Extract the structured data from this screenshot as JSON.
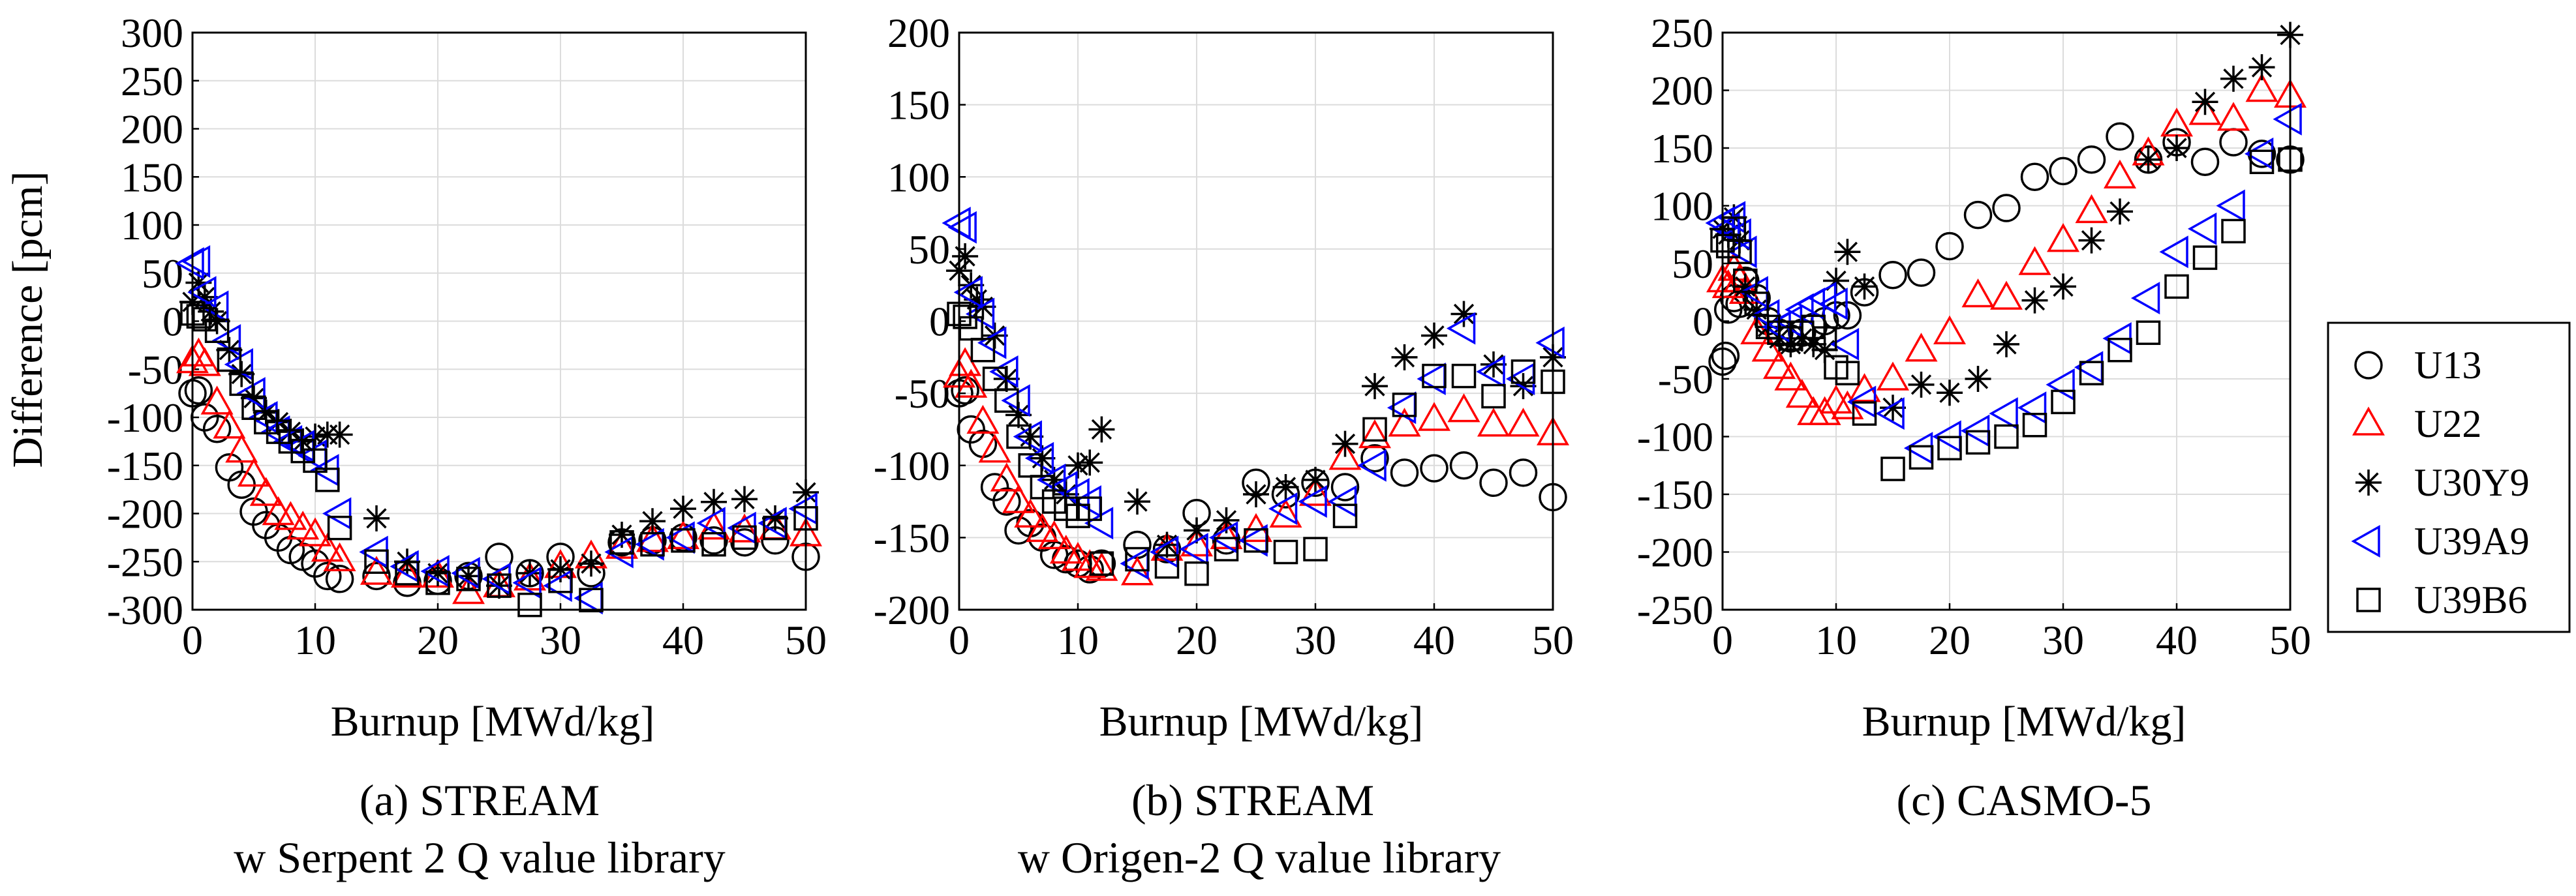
{
  "colors": {
    "U13": "#000000",
    "U22": "#ff0000",
    "U30Y9": "#000000",
    "U39A9": "#0000ff",
    "U39B6": "#000000"
  },
  "legend": {
    "placement": "right",
    "entries": [
      {
        "name": "U13",
        "marker": "circle"
      },
      {
        "name": "U22",
        "marker": "triangle-up"
      },
      {
        "name": "U30Y9",
        "marker": "asterisk"
      },
      {
        "name": "U39A9",
        "marker": "triangle-left"
      },
      {
        "name": "U39B6",
        "marker": "square"
      }
    ]
  },
  "chart_data": [
    {
      "type": "scatter",
      "caption_line1": "(a) STREAM",
      "caption_line2": "w Serpent 2 Q value library",
      "xlabel": "Burnup [MWd/kg]",
      "ylabel": "Difference [pcm]",
      "xlim": [
        0,
        50
      ],
      "ylim": [
        -300,
        300
      ],
      "xticks": [
        0,
        10,
        20,
        30,
        40,
        50
      ],
      "yticks": [
        -300,
        -250,
        -200,
        -150,
        -100,
        -50,
        0,
        50,
        100,
        150,
        200,
        250,
        300
      ],
      "grid": true,
      "series": [
        {
          "name": "U13",
          "x": [
            0,
            0.5,
            1,
            2,
            3,
            4,
            5,
            6,
            7,
            8,
            9,
            10,
            11,
            12,
            15,
            17.5,
            20,
            22.5,
            25,
            27.5,
            30,
            32.5,
            35,
            37.5,
            40,
            42.5,
            45,
            47.5,
            50
          ],
          "y": [
            -75,
            -72,
            -100,
            -112,
            -152,
            -170,
            -198,
            -212,
            -225,
            -238,
            -245,
            -252,
            -265,
            -268,
            -265,
            -272,
            -270,
            -265,
            -245,
            -262,
            -245,
            -262,
            -230,
            -228,
            -225,
            -228,
            -230,
            -228,
            -245
          ]
        },
        {
          "name": "U22",
          "x": [
            0,
            0.5,
            1,
            2,
            3,
            4,
            5,
            6,
            7,
            8,
            9,
            10,
            11,
            12,
            15,
            17.5,
            20,
            22.5,
            25,
            27.5,
            30,
            32.5,
            35,
            37.5,
            40,
            42.5,
            45,
            47.5,
            50
          ],
          "y": [
            -42,
            -35,
            -45,
            -85,
            -110,
            -135,
            -160,
            -180,
            -200,
            -205,
            -215,
            -222,
            -238,
            -248,
            -262,
            -265,
            -265,
            -282,
            -275,
            -268,
            -255,
            -245,
            -235,
            -228,
            -225,
            -215,
            -218,
            -215,
            -222
          ]
        },
        {
          "name": "U30Y9",
          "x": [
            0,
            0.5,
            1,
            1.5,
            2,
            3,
            4,
            5,
            6,
            7,
            8,
            9,
            10,
            11,
            12,
            15,
            17.5,
            20,
            22.5,
            25,
            27.5,
            30,
            32.5,
            35,
            37.5,
            40,
            42.5,
            45,
            47.5,
            50
          ],
          "y": [
            20,
            40,
            25,
            10,
            0,
            -30,
            -55,
            -80,
            -95,
            -105,
            -115,
            -125,
            -120,
            -118,
            -118,
            -205,
            -250,
            -262,
            -265,
            -275,
            -262,
            -258,
            -252,
            -222,
            -208,
            -195,
            -188,
            -185,
            -205,
            -178
          ]
        },
        {
          "name": "U39A9",
          "x": [
            0,
            0.5,
            1,
            2,
            3,
            4,
            5,
            6,
            7,
            8,
            9,
            10,
            11,
            12,
            15,
            17.5,
            20,
            22.5,
            25,
            27.5,
            30,
            32.5,
            35,
            37.5,
            40,
            42.5,
            45,
            47.5,
            50
          ],
          "y": [
            60,
            62,
            30,
            15,
            -20,
            -45,
            -75,
            -100,
            -115,
            -125,
            -130,
            -140,
            -155,
            -200,
            -240,
            -255,
            -260,
            -262,
            -268,
            -272,
            -275,
            -288,
            -240,
            -232,
            -225,
            -210,
            -215,
            -210,
            -195
          ]
        },
        {
          "name": "U39B6",
          "x": [
            0,
            0.5,
            1,
            2,
            3,
            4,
            5,
            6,
            7,
            8,
            9,
            10,
            11,
            12,
            15,
            17.5,
            20,
            22.5,
            25,
            27.5,
            30,
            32.5,
            35,
            37.5,
            40,
            42.5,
            45,
            47.5,
            50
          ],
          "y": [
            8,
            5,
            2,
            -10,
            -40,
            -65,
            -90,
            -105,
            -115,
            -125,
            -135,
            -145,
            -165,
            -215,
            -250,
            -262,
            -272,
            -268,
            -275,
            -295,
            -270,
            -290,
            -230,
            -232,
            -228,
            -232,
            -225,
            -215,
            -205
          ]
        }
      ]
    },
    {
      "type": "scatter",
      "caption_line1": "(b) STREAM",
      "caption_line2": "w Origen-2 Q value library",
      "xlabel": "Burnup [MWd/kg]",
      "ylabel": "",
      "xlim": [
        0,
        50
      ],
      "ylim": [
        -200,
        200
      ],
      "xticks": [
        0,
        10,
        20,
        30,
        40,
        50
      ],
      "yticks": [
        -200,
        -150,
        -100,
        -50,
        0,
        50,
        100,
        150,
        200
      ],
      "grid": true,
      "series": [
        {
          "name": "U13",
          "x": [
            0,
            0.5,
            1,
            2,
            3,
            4,
            5,
            6,
            7,
            8,
            9,
            10,
            11,
            12,
            15,
            17.5,
            20,
            22.5,
            25,
            27.5,
            30,
            32.5,
            35,
            37.5,
            40,
            42.5,
            45,
            47.5,
            50
          ],
          "y": [
            -50,
            -48,
            -75,
            -85,
            -115,
            -125,
            -145,
            -140,
            -150,
            -162,
            -165,
            -168,
            -172,
            -168,
            -155,
            -158,
            -133,
            -152,
            -112,
            -120,
            -112,
            -115,
            -95,
            -105,
            -102,
            -100,
            -112,
            -105,
            -122
          ]
        },
        {
          "name": "U22",
          "x": [
            0,
            0.5,
            1,
            2,
            3,
            4,
            5,
            6,
            7,
            8,
            9,
            10,
            11,
            12,
            15,
            17.5,
            20,
            22.5,
            25,
            27.5,
            30,
            32.5,
            35,
            37.5,
            40,
            42.5,
            45,
            47.5,
            50
          ],
          "y": [
            -38,
            -30,
            -45,
            -70,
            -90,
            -110,
            -125,
            -135,
            -145,
            -150,
            -160,
            -165,
            -170,
            -172,
            -175,
            -158,
            -155,
            -150,
            -145,
            -135,
            -120,
            -95,
            -80,
            -72,
            -68,
            -62,
            -72,
            -72,
            -78
          ]
        },
        {
          "name": "U30Y9",
          "x": [
            0,
            0.5,
            1,
            1.5,
            2,
            3,
            4,
            5,
            6,
            7,
            8,
            9,
            10,
            11,
            12,
            15,
            17.5,
            20,
            22.5,
            25,
            27.5,
            30,
            32.5,
            35,
            37.5,
            40,
            42.5,
            45,
            47.5,
            50
          ],
          "y": [
            35,
            45,
            25,
            15,
            10,
            -10,
            -40,
            -65,
            -80,
            -95,
            -110,
            -120,
            -100,
            -98,
            -75,
            -125,
            -155,
            -145,
            -138,
            -120,
            -115,
            -110,
            -85,
            -45,
            -25,
            -10,
            5,
            -30,
            -45,
            -25
          ]
        },
        {
          "name": "U39A9",
          "x": [
            0,
            0.5,
            1,
            2,
            3,
            4,
            5,
            6,
            7,
            8,
            9,
            10,
            11,
            12,
            15,
            17.5,
            20,
            22.5,
            25,
            27.5,
            30,
            32.5,
            35,
            37.5,
            40,
            42.5,
            45,
            47.5,
            50
          ],
          "y": [
            68,
            65,
            20,
            5,
            -15,
            -35,
            -55,
            -80,
            -95,
            -110,
            -115,
            -120,
            -125,
            -140,
            -168,
            -160,
            -158,
            -150,
            -152,
            -130,
            -125,
            -125,
            -100,
            -60,
            -40,
            -5,
            -35,
            -40,
            -15
          ]
        },
        {
          "name": "U39B6",
          "x": [
            0,
            0.5,
            1,
            2,
            3,
            4,
            5,
            6,
            7,
            8,
            9,
            10,
            11,
            12,
            15,
            17.5,
            20,
            22.5,
            25,
            27.5,
            30,
            32.5,
            35,
            37.5,
            40,
            42.5,
            45,
            47.5,
            50
          ],
          "y": [
            5,
            3,
            -5,
            -20,
            -40,
            -55,
            -80,
            -100,
            -115,
            -125,
            -130,
            -135,
            -130,
            -168,
            -165,
            -170,
            -175,
            -158,
            -152,
            -160,
            -158,
            -135,
            -75,
            -58,
            -38,
            -38,
            -52,
            -35,
            -42
          ]
        }
      ]
    },
    {
      "type": "scatter",
      "caption_line1": "(c) CASMO-5",
      "caption_line2": "",
      "xlabel": "Burnup [MWd/kg]",
      "ylabel": "",
      "xlim": [
        0,
        50
      ],
      "ylim": [
        -250,
        250
      ],
      "xticks": [
        0,
        10,
        20,
        30,
        40,
        50
      ],
      "yticks": [
        -250,
        -200,
        -150,
        -100,
        -50,
        0,
        50,
        100,
        150,
        200,
        250
      ],
      "grid": true,
      "series": [
        {
          "name": "U13",
          "x": [
            0,
            0.25,
            0.5,
            1,
            1.5,
            2,
            3,
            4,
            5,
            6,
            7,
            8,
            9,
            10,
            11,
            12.5,
            15,
            17.5,
            20,
            22.5,
            25,
            27.5,
            30,
            32.5,
            35,
            37.5,
            40,
            42.5,
            45,
            47.5,
            50
          ],
          "y": [
            -35,
            -30,
            10,
            20,
            15,
            35,
            20,
            0,
            -10,
            -15,
            -10,
            -5,
            0,
            5,
            5,
            25,
            40,
            42,
            65,
            92,
            98,
            125,
            130,
            140,
            160,
            140,
            155,
            138,
            155,
            145,
            140
          ]
        },
        {
          "name": "U22",
          "x": [
            0,
            0.5,
            1,
            1.5,
            2,
            3,
            4,
            5,
            6,
            7,
            8,
            9,
            10,
            11,
            12.5,
            15,
            17.5,
            20,
            22.5,
            25,
            27.5,
            30,
            32.5,
            35,
            37.5,
            40,
            42.5,
            45,
            47.5,
            50
          ],
          "y": [
            35,
            30,
            45,
            35,
            25,
            -10,
            -25,
            -40,
            -50,
            -65,
            -80,
            -80,
            -70,
            -75,
            -60,
            -50,
            -25,
            -10,
            22,
            20,
            50,
            70,
            95,
            125,
            145,
            170,
            180,
            175,
            200,
            195
          ]
        },
        {
          "name": "U30Y9",
          "x": [
            0,
            0.5,
            1,
            1.5,
            2,
            3,
            4,
            5,
            6,
            7,
            8,
            9,
            10,
            11,
            12.5,
            15,
            17.5,
            20,
            22.5,
            25,
            27.5,
            30,
            32.5,
            35,
            37.5,
            40,
            42.5,
            45,
            47.5,
            50
          ],
          "y": [
            80,
            75,
            90,
            70,
            30,
            10,
            -5,
            -15,
            -20,
            -15,
            -20,
            -25,
            35,
            60,
            30,
            -75,
            -55,
            -62,
            -50,
            -20,
            18,
            30,
            70,
            95,
            140,
            150,
            190,
            210,
            220,
            248
          ]
        },
        {
          "name": "U39A9",
          "x": [
            0,
            0.5,
            1,
            1.5,
            2,
            3,
            4,
            5,
            6,
            7,
            8,
            9,
            10,
            11,
            12.5,
            15,
            17.5,
            20,
            22.5,
            25,
            27.5,
            30,
            32.5,
            35,
            37.5,
            40,
            42.5,
            45,
            47.5,
            50
          ],
          "y": [
            85,
            80,
            90,
            75,
            60,
            25,
            5,
            -5,
            0,
            10,
            15,
            20,
            15,
            -20,
            -70,
            -80,
            -110,
            -100,
            -95,
            -80,
            -75,
            -55,
            -40,
            -15,
            20,
            60,
            80,
            100,
            145,
            175
          ]
        },
        {
          "name": "U39B6",
          "x": [
            0,
            0.5,
            1,
            1.5,
            2,
            3,
            4,
            5,
            6,
            7,
            8,
            9,
            10,
            11,
            12.5,
            15,
            17.5,
            20,
            22.5,
            25,
            27.5,
            30,
            32.5,
            35,
            37.5,
            40,
            42.5,
            45,
            47.5,
            50
          ],
          "y": [
            70,
            65,
            80,
            60,
            35,
            15,
            -5,
            -10,
            -15,
            -10,
            -5,
            -15,
            -40,
            -45,
            -80,
            -128,
            -118,
            -110,
            -105,
            -100,
            -90,
            -70,
            -45,
            -25,
            -10,
            30,
            55,
            78,
            138,
            140
          ]
        }
      ]
    }
  ]
}
